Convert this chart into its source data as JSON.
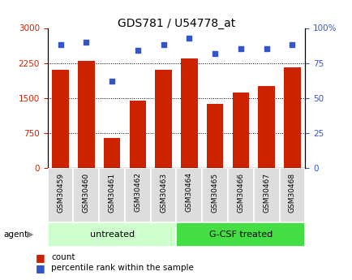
{
  "title": "GDS781 / U54778_at",
  "samples": [
    "GSM30459",
    "GSM30460",
    "GSM30461",
    "GSM30462",
    "GSM30463",
    "GSM30464",
    "GSM30465",
    "GSM30466",
    "GSM30467",
    "GSM30468"
  ],
  "counts": [
    2100,
    2300,
    650,
    1450,
    2100,
    2350,
    1380,
    1620,
    1750,
    2150
  ],
  "percentile_ranks": [
    88,
    90,
    62,
    84,
    88,
    93,
    82,
    85,
    85,
    88
  ],
  "bar_color": "#cc2200",
  "dot_color": "#3355cc",
  "groups": [
    {
      "label": "untreated",
      "start": 0,
      "end": 5,
      "color": "#ccffcc"
    },
    {
      "label": "G-CSF treated",
      "start": 5,
      "end": 10,
      "color": "#44dd44"
    }
  ],
  "ylim_left": [
    0,
    3000
  ],
  "ylim_right": [
    0,
    100
  ],
  "yticks_left": [
    0,
    750,
    1500,
    2250,
    3000
  ],
  "yticks_right": [
    0,
    25,
    50,
    75,
    100
  ],
  "ytick_labels_right": [
    "0",
    "25",
    "50",
    "75",
    "100%"
  ],
  "agent_label": "agent",
  "legend_count_label": "count",
  "legend_pct_label": "percentile rank within the sample",
  "background_color": "#ffffff",
  "tick_label_color_left": "#cc2200",
  "tick_label_color_right": "#3355cc",
  "label_bg_color": "#dddddd",
  "bar_width": 0.65
}
